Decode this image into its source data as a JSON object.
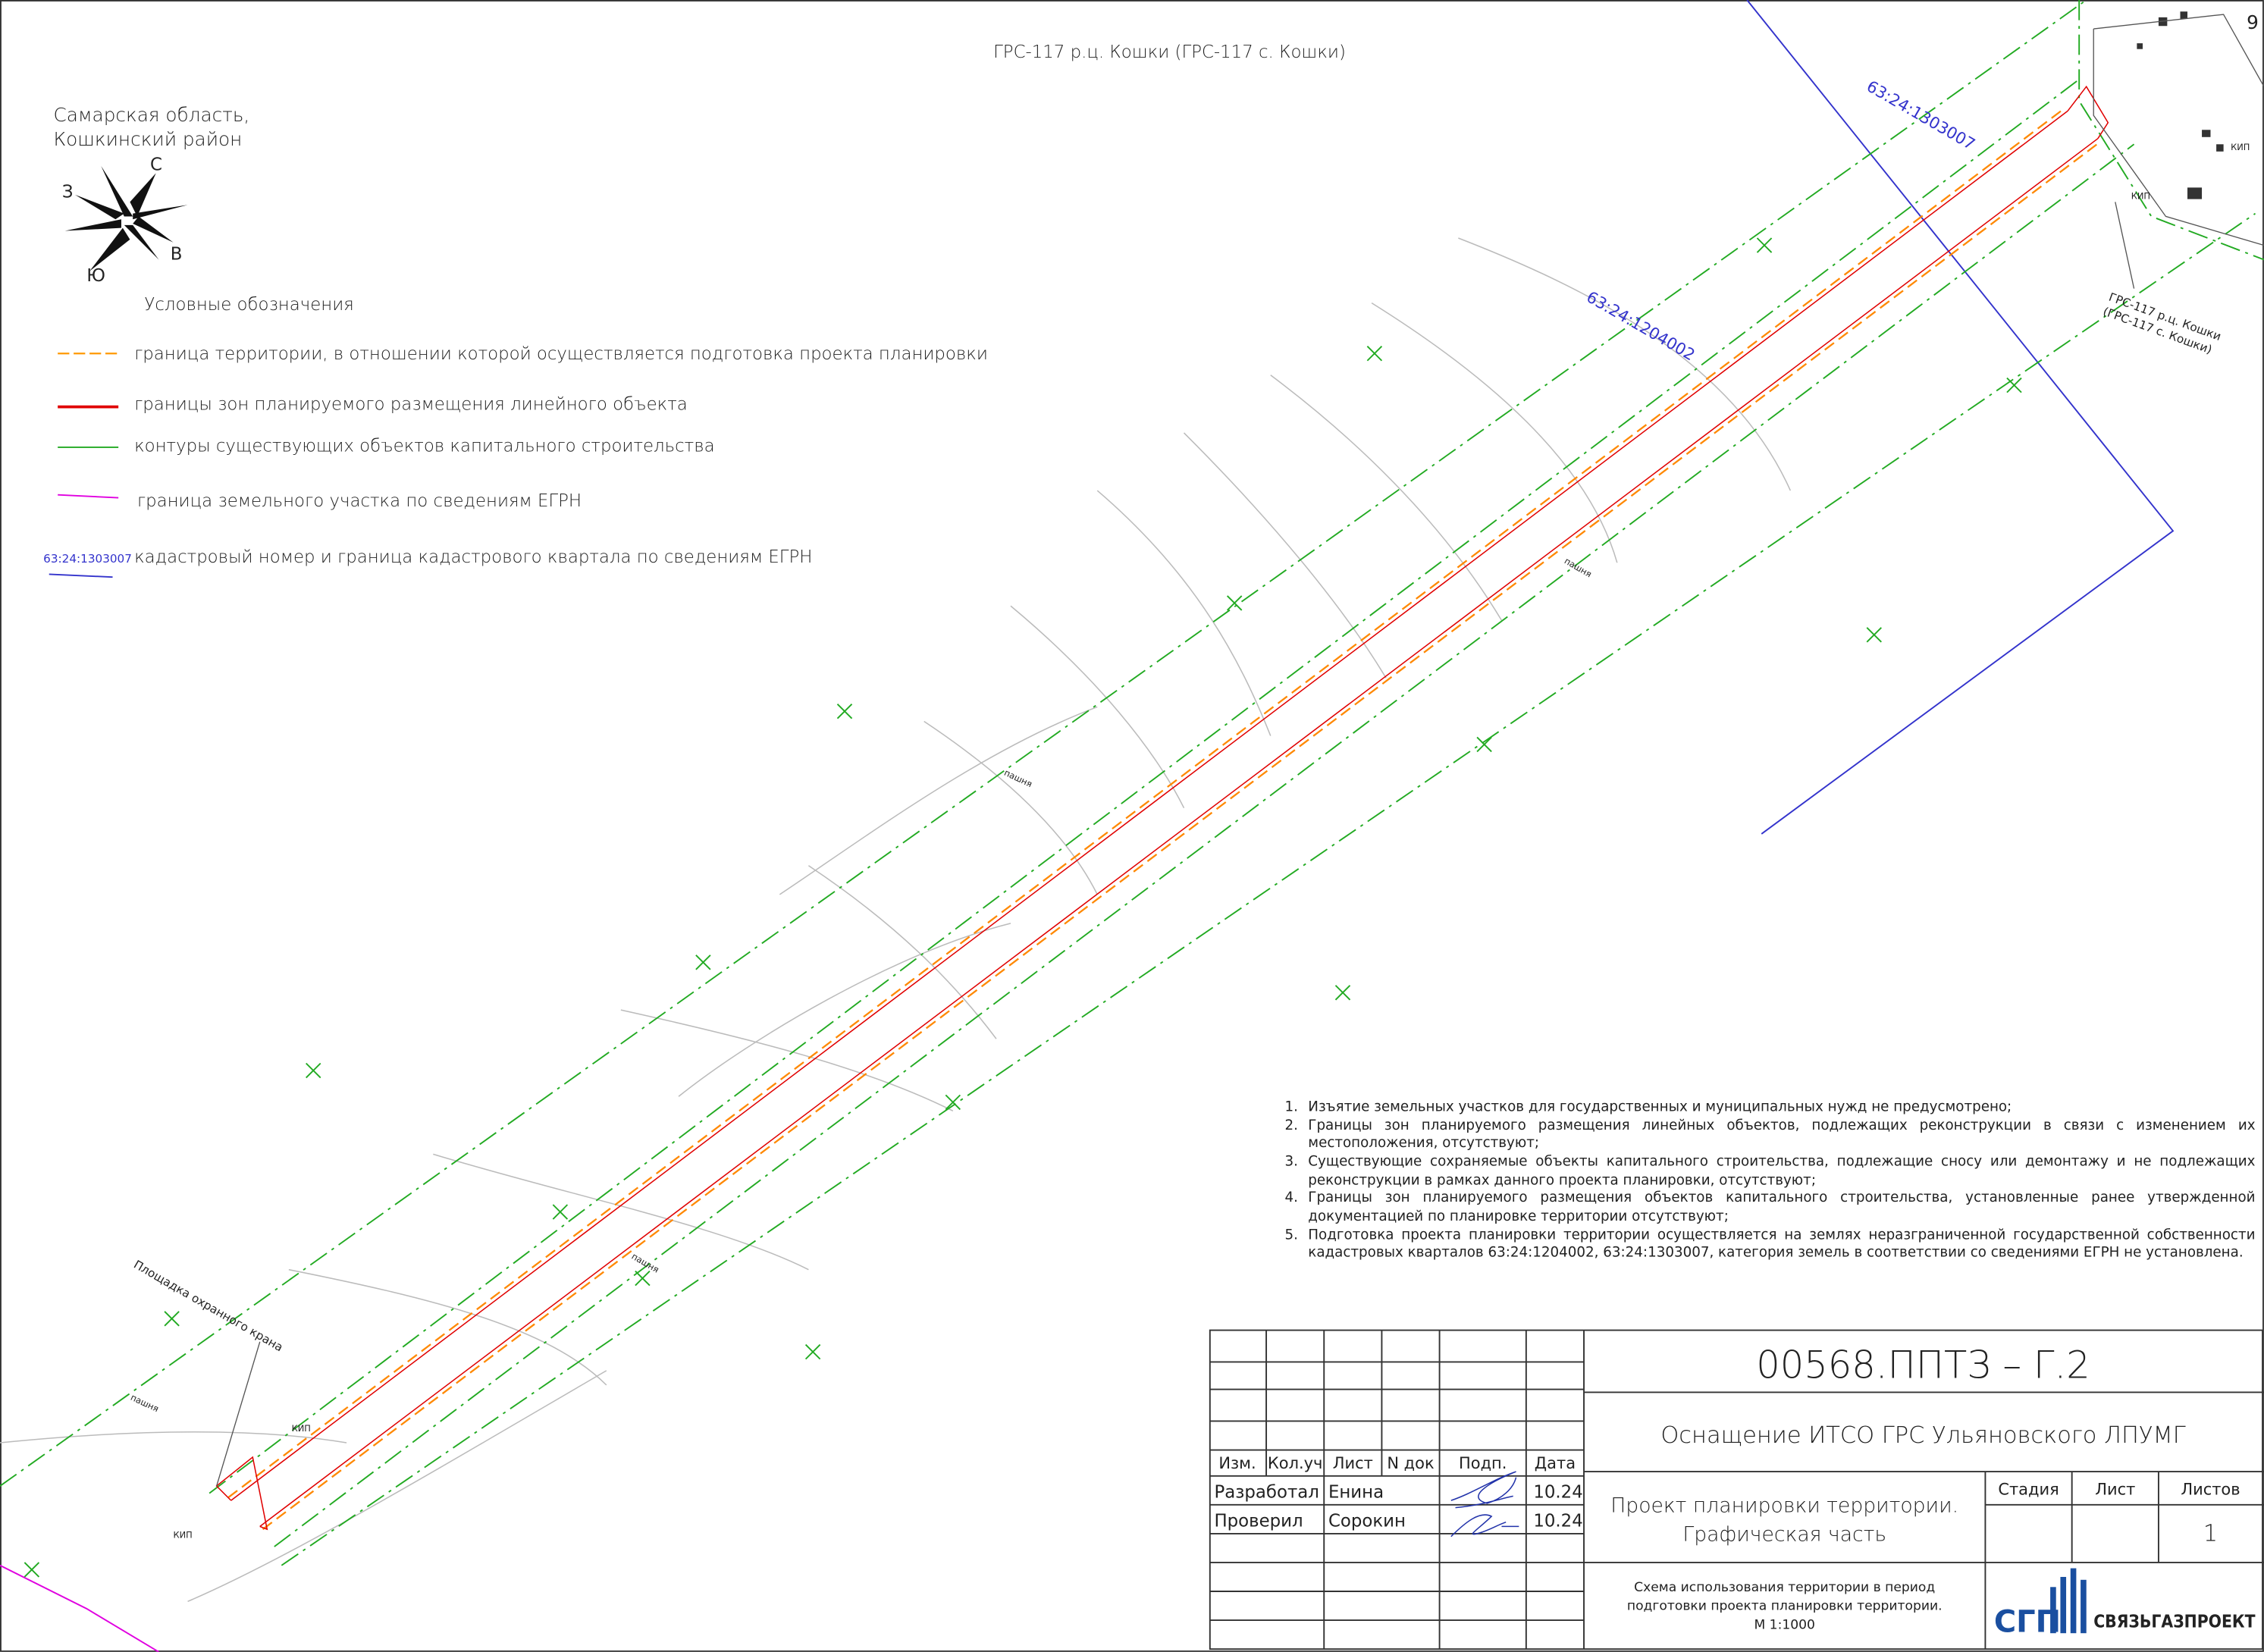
{
  "page_number": "9",
  "header": {
    "title": "ГРС-117 р.ц. Кошки (ГРС-117 с. Кошки)",
    "region": [
      "Самарская область,",
      "Кошкинский район"
    ]
  },
  "compass": {
    "north": "С",
    "south": "Ю",
    "east": "В",
    "west": "З"
  },
  "legend": {
    "title": "Условные обозначения",
    "items": [
      "граница территории, в отношении которой осуществляется подготовка проекта планировки",
      "границы зон планируемого размещения линейного объекта",
      "контуры существующих объектов капитального строительства",
      "граница земельного участка по сведениям ЕГРН",
      "кадастровый номер и граница кадастрового квартала по сведениям ЕГРН"
    ],
    "cadastral_sample": "63:24:1303007"
  },
  "map": {
    "cadastral": [
      "63:24:1303007",
      "63:24:1204002"
    ],
    "object_label": [
      "ГРС-117 р.ц. Кошки",
      "(ГРС-117 с. Кошки)"
    ],
    "crane_site": "Площадка охранного крана",
    "field_label": "пашня",
    "kip": "КИП"
  },
  "notes": [
    "Изъятие земельных участков для государственных и муниципальных нужд не предусмотрено;",
    "Границы зон планируемого размещения линейных объектов, подлежащих реконструкции в связи с изменением их местоположения, отсутствуют;",
    "Существующие сохраняемые объекты капитального строительства, подлежащие сносу или демонтажу и не подлежащих реконструкции в рамках данного проекта планировки, отсутствуют;",
    "Границы зон планируемого размещения объектов капитального строительства, установленные ранее утвержденной документацией по планировке территории отсутствуют;",
    "Подготовка проекта планировки территории осуществляется на землях неразграниченной государственной собственности кадастровых кварталов 63:24:1204002, 63:24:1303007, категория земель в соответствии со сведениями ЕГРН не установлена."
  ],
  "title_block": {
    "code": "00568.ППТЗ – Г.2",
    "project": "Оснащение ИТСО ГРС Ульяновского ЛПУМГ",
    "headers": [
      "Изм.",
      "Кол.уч",
      "Лист",
      "N док",
      "Подп.",
      "Дата"
    ],
    "signatures": [
      {
        "role": "Разработал",
        "name": "Енина",
        "date": "10.24"
      },
      {
        "role": "Проверил",
        "name": "Сорокин",
        "date": "10.24"
      }
    ],
    "section": [
      "Проект планировки территории.",
      "Графическая часть"
    ],
    "stage_headers": [
      "Стадия",
      "Лист",
      "Листов"
    ],
    "sheets": "1",
    "drawing_title": [
      "Схема использования территории в период",
      "подготовки проекта планировки территории.",
      "М 1:1000"
    ],
    "logo": "СГП",
    "company": "СВЯЗЬГАЗПРОЕКТ"
  }
}
